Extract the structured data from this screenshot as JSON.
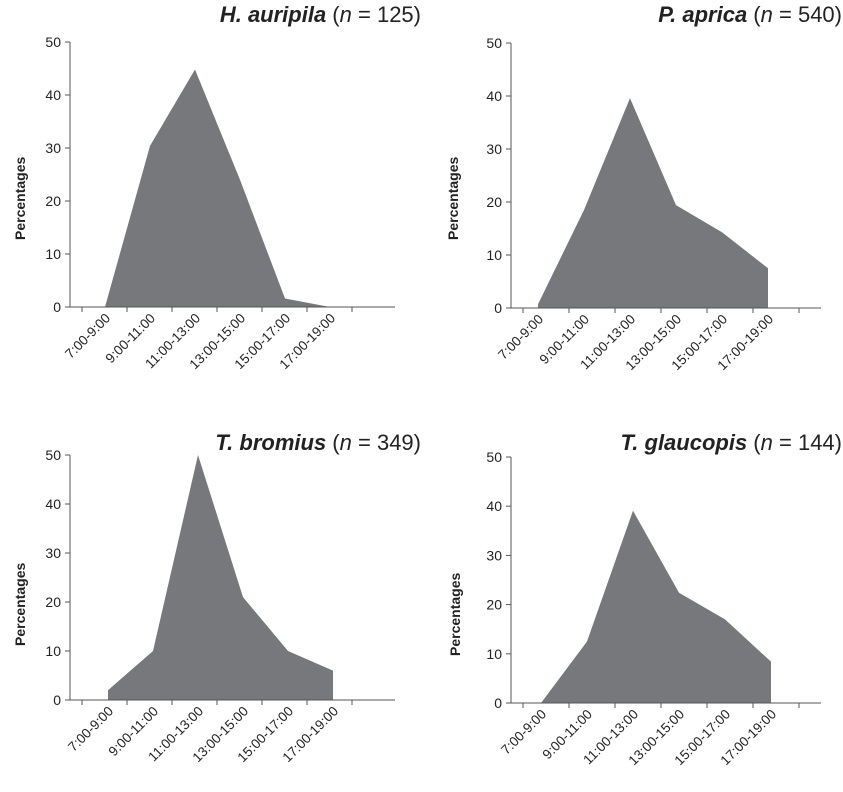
{
  "chart_data": [
    {
      "type": "area",
      "title": {
        "species": "H. auripila",
        "n_italic": "n",
        "n_rest": " = 125)",
        "open": " ("
      },
      "ylabel": "Percentages",
      "ylim": [
        0,
        50
      ],
      "yticks": [
        0,
        10,
        20,
        30,
        40,
        50
      ],
      "categories": [
        "7:00-9:00",
        "9:00-11:00",
        "11:00-13:00",
        "13:00-15:00",
        "15:00-17:00",
        "17:00-19:00"
      ],
      "values": [
        0,
        30.4,
        44.8,
        24,
        1.6,
        0
      ],
      "color": "#77787b"
    },
    {
      "type": "area",
      "title": {
        "species": "P. aprica",
        "n_italic": "n",
        "n_rest": " = 540)",
        "open": " ("
      },
      "ylabel": "Percentages",
      "ylim": [
        0,
        50
      ],
      "yticks": [
        0,
        10,
        20,
        30,
        40,
        50
      ],
      "categories": [
        "7:00-9:00",
        "9:00-11:00",
        "11:00-13:00",
        "13:00-15:00",
        "15:00-17:00",
        "17:00-19:00"
      ],
      "values": [
        0.7,
        18.5,
        39.6,
        19.4,
        14.3,
        7.5
      ],
      "color": "#77787b"
    },
    {
      "type": "area",
      "title": {
        "species": "T. bromius",
        "n_italic": "n",
        "n_rest": " = 349)",
        "open": " ("
      },
      "ylabel": "Percentages",
      "ylim": [
        0,
        50
      ],
      "yticks": [
        0,
        10,
        20,
        30,
        40,
        50
      ],
      "categories": [
        "7:00-9:00",
        "9:00-11:00",
        "11:00-13:00",
        "13:00-15:00",
        "15:00-17:00",
        "17:00-19:00"
      ],
      "values": [
        2.0,
        10.0,
        50.0,
        21.0,
        10.0,
        6.0
      ],
      "color": "#77787b"
    },
    {
      "type": "area",
      "title": {
        "species": "T. glaucopis",
        "n_italic": "n",
        "n_rest": " = 144)",
        "open": " ("
      },
      "ylabel": "Percentages",
      "ylim": [
        0,
        50
      ],
      "yticks": [
        0,
        10,
        20,
        30,
        40,
        50
      ],
      "categories": [
        "7:00-9:00",
        "9:00-11:00",
        "11:00-13:00",
        "13:00-15:00",
        "15:00-17:00",
        "17:00-19:00"
      ],
      "values": [
        0,
        12.5,
        39.1,
        22.4,
        17.0,
        8.4
      ],
      "color": "#77787b"
    }
  ]
}
